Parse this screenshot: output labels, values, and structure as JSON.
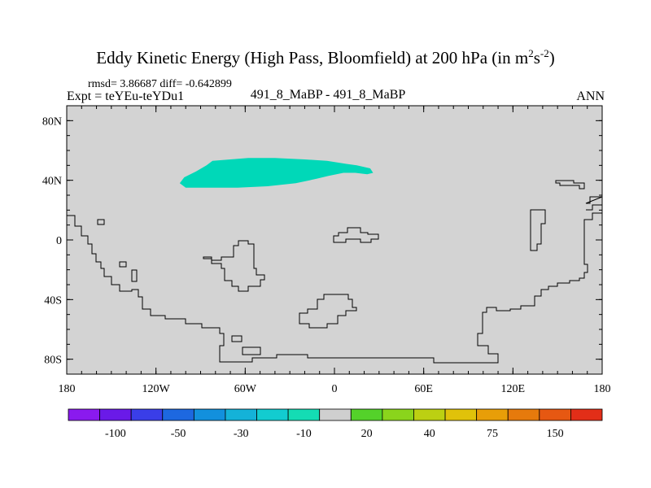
{
  "header": {
    "title_main": "Eddy Kinetic Energy (High Pass, Bloomfield) at 200 hPa (in m",
    "title_sup1": "2",
    "title_mid": "s",
    "title_sup2": "-2",
    "title_end": ")",
    "stats": "rmsd= 3.86687 diff= -0.642899",
    "expt": "Expt = teYEu-teYDu1",
    "center_label": "491_8_MaBP - 491_8_MaBP",
    "season": "ANN"
  },
  "colors": {
    "background_field": "#d3d3d3",
    "anomaly_fill": "#00d8b8",
    "contour": "#000000"
  },
  "chart_data": {
    "type": "heatmap",
    "projection": "cylindrical-equidistant",
    "xlim": [
      -180,
      180
    ],
    "ylim": [
      -90,
      90
    ],
    "x_ticks": [
      {
        "value": -180,
        "label": "180"
      },
      {
        "value": -120,
        "label": "120W"
      },
      {
        "value": -60,
        "label": "60W"
      },
      {
        "value": 0,
        "label": "0"
      },
      {
        "value": 60,
        "label": "60E"
      },
      {
        "value": 120,
        "label": "120E"
      },
      {
        "value": 180,
        "label": "180"
      }
    ],
    "y_ticks": [
      {
        "value": 80,
        "label": "80N"
      },
      {
        "value": 40,
        "label": "40N"
      },
      {
        "value": 0,
        "label": "0"
      },
      {
        "value": -40,
        "label": "40S"
      },
      {
        "value": -80,
        "label": "80S"
      }
    ],
    "anomaly_region": {
      "level_bin": "-10",
      "outline": [
        [
          -104,
          38
        ],
        [
          -101,
          42
        ],
        [
          -93,
          46
        ],
        [
          -86,
          50
        ],
        [
          -82,
          53
        ],
        [
          -70,
          54
        ],
        [
          -58,
          55
        ],
        [
          -40,
          55
        ],
        [
          -20,
          54
        ],
        [
          -5,
          53
        ],
        [
          8,
          51
        ],
        [
          15,
          50
        ],
        [
          24,
          48
        ],
        [
          26,
          45
        ],
        [
          22,
          44
        ],
        [
          14,
          45
        ],
        [
          6,
          45
        ],
        [
          -4,
          43
        ],
        [
          -12,
          41
        ],
        [
          -26,
          38
        ],
        [
          -45,
          36
        ],
        [
          -65,
          35
        ],
        [
          -85,
          35
        ],
        [
          -100,
          35
        ]
      ]
    },
    "colorbar": {
      "colors": [
        "#8a1aee",
        "#6a1ae8",
        "#3a3ee8",
        "#1d68e0",
        "#1290dd",
        "#14b2d8",
        "#12ccd0",
        "#14dcb4",
        "#cfcfcf",
        "#54d22a",
        "#8ad41c",
        "#bcd012",
        "#e0c20a",
        "#e89e08",
        "#e67a0c",
        "#e65812",
        "#e22e18"
      ],
      "labels": [
        {
          "after_box": 1,
          "label": "-100"
        },
        {
          "after_box": 3,
          "label": "-50"
        },
        {
          "after_box": 5,
          "label": "-30"
        },
        {
          "after_box": 7,
          "label": "-10"
        },
        {
          "after_box": 9,
          "label": "20"
        },
        {
          "after_box": 11,
          "label": "40"
        },
        {
          "after_box": 13,
          "label": "75"
        },
        {
          "after_box": 15,
          "label": "150"
        }
      ]
    }
  }
}
